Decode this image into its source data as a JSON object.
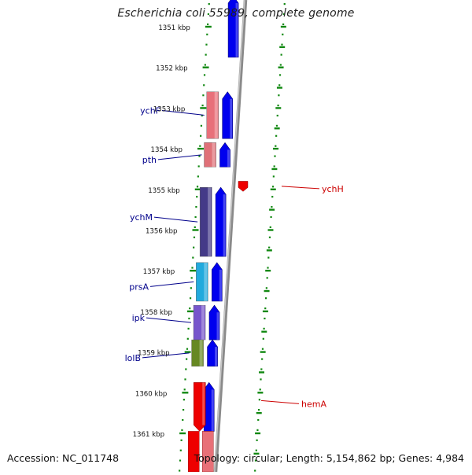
{
  "title": "Escherichia coli 55989, complete genome",
  "footer": {
    "accession": "Accession: NC_011748",
    "summary": "Topology: circular; Length: 5,154,862 bp; Genes: 4,984"
  },
  "ruler": {
    "unit": "kbp",
    "ticks": [
      "1351 kbp",
      "1352 kbp",
      "1353 kbp",
      "1354 kbp",
      "1355 kbp",
      "1356 kbp",
      "1357 kbp",
      "1358 kbp",
      "1359 kbp",
      "1360 kbp",
      "1361 kbp"
    ]
  },
  "colors": {
    "forward_cds": "#0000ee",
    "rna_feature": "#ee0000",
    "backbone": "#8a8a8a",
    "tick_marks": "#118811",
    "left_gene_label": "#00008b",
    "right_gene_label": "#cc0000"
  },
  "genes": [
    {
      "name": "ychF",
      "side": "left",
      "start_kbp": 1352.6,
      "end_kbp": 1353.75,
      "color": "#e8707a"
    },
    {
      "name": "pth",
      "side": "left",
      "start_kbp": 1353.85,
      "end_kbp": 1354.45,
      "color": "#e07078"
    },
    {
      "name": "ychM",
      "side": "left",
      "start_kbp": 1354.95,
      "end_kbp": 1356.65,
      "color": "#443a88"
    },
    {
      "name": "prsA",
      "side": "left",
      "start_kbp": 1356.8,
      "end_kbp": 1357.75,
      "color": "#22aadd"
    },
    {
      "name": "ipk",
      "side": "left",
      "start_kbp": 1357.85,
      "end_kbp": 1358.7,
      "color": "#7755cc"
    },
    {
      "name": "lolB",
      "side": "left",
      "start_kbp": 1358.7,
      "end_kbp": 1359.35,
      "color": "#668822"
    },
    {
      "name": "ychH",
      "side": "right",
      "start_kbp": 1354.8,
      "end_kbp": 1355.05,
      "color": "#ee0000"
    },
    {
      "name": "hemA",
      "side": "right",
      "start_kbp": 1359.75,
      "end_kbp": 1360.95,
      "color": "#ee0000"
    }
  ],
  "forward_genes": [
    {
      "start_kbp": 1350.1,
      "end_kbp": 1351.75,
      "color": "#0000ee"
    },
    {
      "start_kbp": 1352.6,
      "end_kbp": 1353.75,
      "color": "#0000ee"
    },
    {
      "start_kbp": 1353.85,
      "end_kbp": 1354.45,
      "color": "#0000ee"
    },
    {
      "start_kbp": 1354.95,
      "end_kbp": 1356.65,
      "color": "#0000ee"
    },
    {
      "start_kbp": 1356.8,
      "end_kbp": 1357.75,
      "color": "#0000ee"
    },
    {
      "start_kbp": 1357.85,
      "end_kbp": 1358.7,
      "color": "#0000ee"
    },
    {
      "start_kbp": 1358.7,
      "end_kbp": 1359.35,
      "color": "#0000ee"
    },
    {
      "start_kbp": 1359.75,
      "end_kbp": 1360.95,
      "color": "#0000ee"
    }
  ],
  "rna_features": [
    {
      "start_kbp": 1360.95,
      "end_kbp": 1361.6,
      "color": "#ee0000"
    },
    {
      "start_kbp": 1360.95,
      "end_kbp": 1361.6,
      "color": "#e87078"
    }
  ]
}
